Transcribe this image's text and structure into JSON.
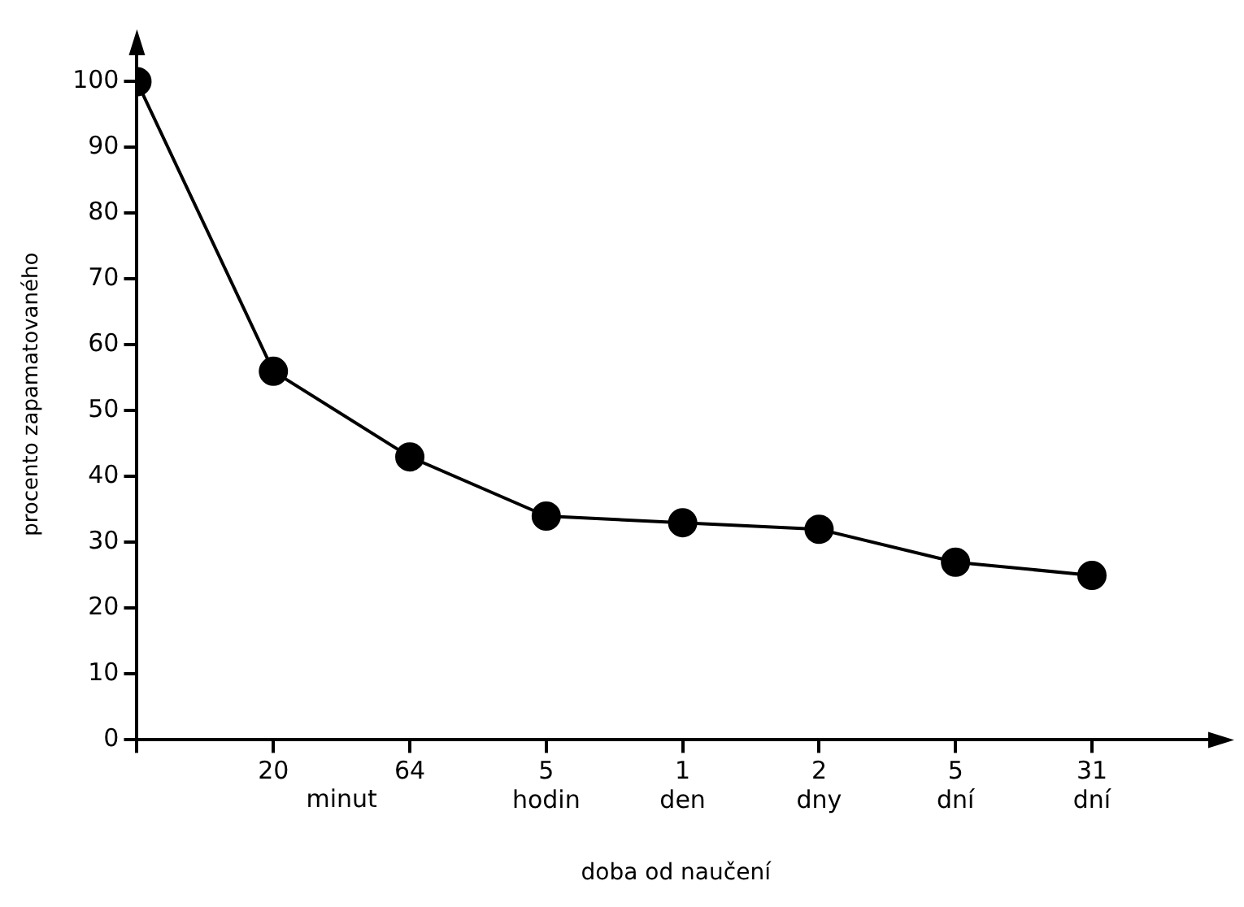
{
  "chart_data": {
    "type": "line",
    "xlabel": "doba od naučení",
    "ylabel": "procento zapamatovaného",
    "categories": [
      null,
      "20",
      "64",
      "5 hodin",
      "1 den",
      "2 dny",
      "5 dní",
      "31 dní"
    ],
    "annotations": [
      "minut"
    ],
    "series": [
      {
        "color": "#000000",
        "values": [
          100,
          56,
          43,
          34,
          33,
          32,
          27,
          25
        ]
      }
    ],
    "ylim": [
      0,
      105
    ],
    "yticks": [
      0,
      10,
      20,
      30,
      40,
      50,
      60,
      70,
      80,
      90,
      100
    ],
    "grid": false,
    "legend": false,
    "marker": "circle",
    "line_style": "solid"
  }
}
